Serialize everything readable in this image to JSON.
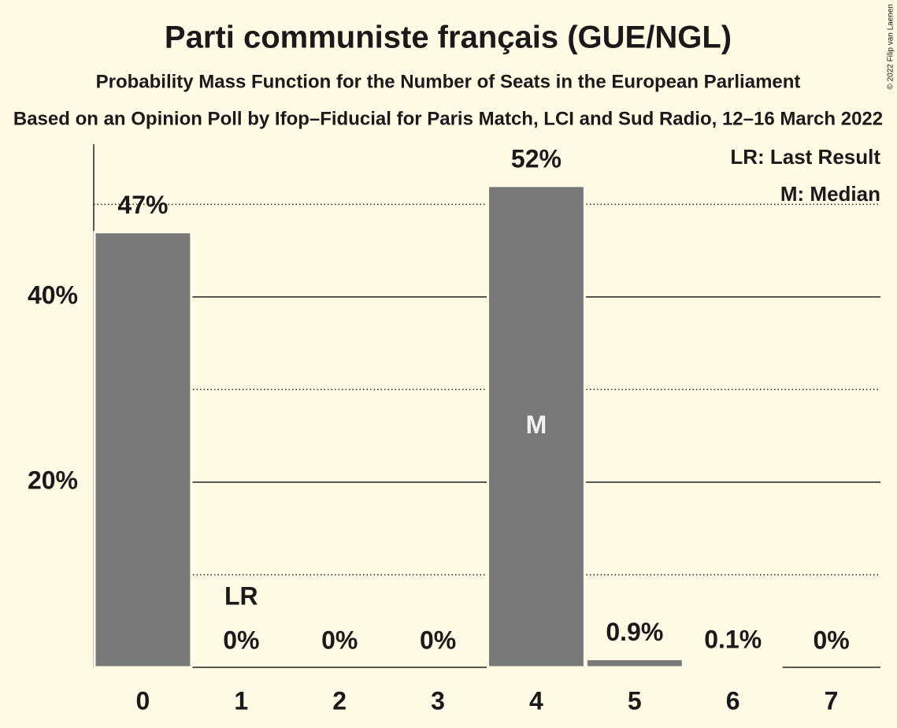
{
  "chart_data": {
    "type": "bar",
    "title": "Parti communiste français (GUE/NGL)",
    "subtitle": "Probability Mass Function for the Number of Seats in the European Parliament",
    "subtitle2": "Based on an Opinion Poll by Ifop–Fiducial for Paris Match, LCI and Sud Radio, 12–16 March 2022",
    "copyright": "© 2022 Filip van Laenen",
    "categories": [
      "0",
      "1",
      "2",
      "3",
      "4",
      "5",
      "6",
      "7"
    ],
    "values": [
      47,
      0,
      0,
      0,
      52,
      0.9,
      0.1,
      0
    ],
    "value_labels": [
      "47%",
      "0%",
      "0%",
      "0%",
      "52%",
      "0.9%",
      "0.1%",
      "0%"
    ],
    "color": "#787878",
    "ylim": [
      0,
      56.5
    ],
    "yticks": [
      {
        "value": 20,
        "label": "20%"
      },
      {
        "value": 40,
        "label": "40%"
      }
    ],
    "minor_yticks": [
      10,
      30,
      50
    ],
    "grid": true,
    "annotations": [
      {
        "category": 1,
        "text": "LR"
      },
      {
        "category": 4,
        "text": "M"
      }
    ],
    "legend": [
      "LR: Last Result",
      "M: Median"
    ],
    "legend_position": "top-right"
  }
}
